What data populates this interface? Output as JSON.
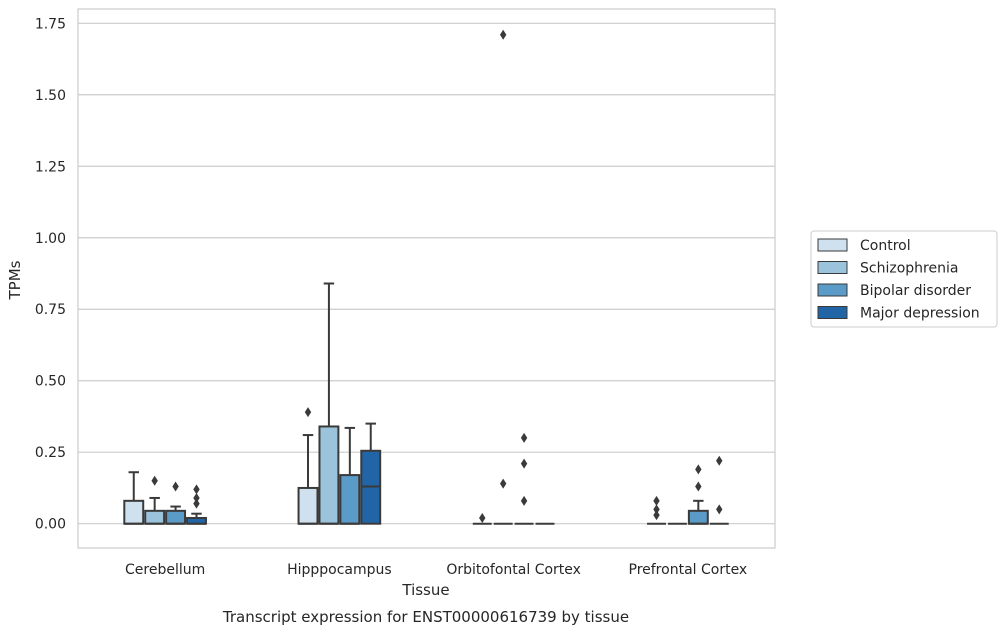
{
  "chart_data": {
    "type": "box",
    "title": "Transcript expression for ENST00000616739 by tissue",
    "xlabel": "Tissue",
    "ylabel": "TPMs",
    "ylim": [
      -0.085,
      1.8
    ],
    "yticks": [
      "0.00",
      "0.25",
      "0.50",
      "0.75",
      "1.00",
      "1.25",
      "1.50",
      "1.75"
    ],
    "grid": true,
    "legend_position": "right",
    "categories": [
      "Cerebellum",
      "Hipppocampus",
      "Orbitofontal Cortex",
      "Prefrontal Cortex"
    ],
    "series": [
      {
        "name": "Control",
        "color": "#cfe0ef",
        "boxes": [
          {
            "min": 0,
            "q1": 0,
            "median": 0,
            "q3": 0.08,
            "max": 0.18,
            "outliers": []
          },
          {
            "min": 0,
            "q1": 0,
            "median": 0,
            "q3": 0.125,
            "max": 0.31,
            "outliers": [
              0.39
            ]
          },
          {
            "min": 0,
            "q1": 0,
            "median": 0,
            "q3": 0,
            "max": 0,
            "outliers": [
              0.02
            ]
          },
          {
            "min": 0,
            "q1": 0,
            "median": 0,
            "q3": 0,
            "max": 0,
            "outliers": [
              0.03,
              0.05,
              0.08
            ]
          }
        ]
      },
      {
        "name": "Schizophrenia",
        "color": "#9cc3dc",
        "boxes": [
          {
            "min": 0,
            "q1": 0,
            "median": 0,
            "q3": 0.045,
            "max": 0.09,
            "outliers": [
              0.15
            ]
          },
          {
            "min": 0,
            "q1": 0,
            "median": 0,
            "q3": 0.34,
            "max": 0.84,
            "outliers": []
          },
          {
            "min": 0,
            "q1": 0,
            "median": 0,
            "q3": 0,
            "max": 0,
            "outliers": [
              0.14,
              1.71
            ]
          },
          {
            "min": 0,
            "q1": 0,
            "median": 0,
            "q3": 0,
            "max": 0,
            "outliers": []
          }
        ]
      },
      {
        "name": "Bipolar disorder",
        "color": "#5b9bc8",
        "boxes": [
          {
            "min": 0,
            "q1": 0,
            "median": 0,
            "q3": 0.045,
            "max": 0.06,
            "outliers": [
              0.13
            ]
          },
          {
            "min": 0,
            "q1": 0,
            "median": 0,
            "q3": 0.17,
            "max": 0.335,
            "outliers": []
          },
          {
            "min": 0,
            "q1": 0,
            "median": 0,
            "q3": 0,
            "max": 0,
            "outliers": [
              0.08,
              0.21,
              0.3
            ]
          },
          {
            "min": 0,
            "q1": 0,
            "median": 0,
            "q3": 0.045,
            "max": 0.08,
            "outliers": [
              0.13,
              0.19
            ]
          }
        ]
      },
      {
        "name": "Major depression",
        "color": "#2265a6",
        "boxes": [
          {
            "min": 0,
            "q1": 0,
            "median": 0,
            "q3": 0.02,
            "max": 0.035,
            "outliers": [
              0.07,
              0.09,
              0.12
            ]
          },
          {
            "min": 0,
            "q1": 0,
            "median": 0.13,
            "q3": 0.255,
            "max": 0.35,
            "outliers": []
          },
          {
            "min": 0,
            "q1": 0,
            "median": 0,
            "q3": 0,
            "max": 0,
            "outliers": []
          },
          {
            "min": 0,
            "q1": 0,
            "median": 0,
            "q3": 0,
            "max": 0,
            "outliers": [
              0.05,
              0.22
            ]
          }
        ]
      }
    ]
  }
}
